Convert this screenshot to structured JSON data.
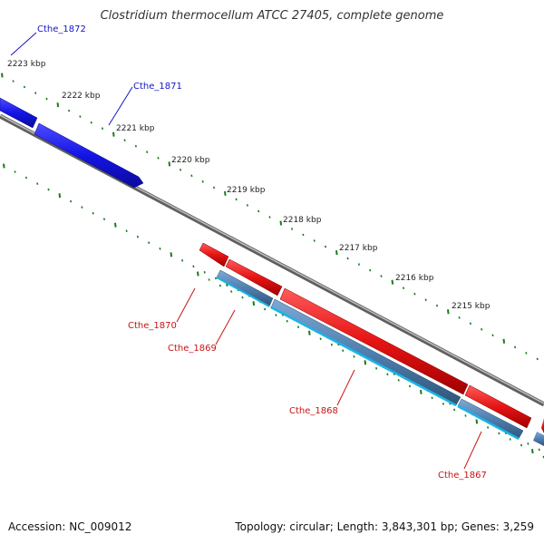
{
  "title": "Clostridium thermocellum ATCC 27405, complete genome",
  "footer": {
    "accession": "Accession: NC_009012",
    "topology": "Topology: circular; Length: 3,843,301 bp; Genes: 3,259"
  },
  "colors": {
    "backbone": "#808080",
    "tick": "#1a7a1a",
    "forward_gene": "#1414e6",
    "reverse_gene": "#e61414",
    "reverse_cds": "#4f7fb0",
    "reverse_cds_light": "#1ab4e6",
    "label_forward": "#1414c8",
    "label_reverse": "#c81414"
  },
  "scale_labels": [
    "2223 kbp",
    "2222 kbp",
    "2221 kbp",
    "2220 kbp",
    "2219 kbp",
    "2218 kbp",
    "2217 kbp",
    "2216 kbp",
    "2215 kbp"
  ],
  "genes": [
    {
      "name": "Cthe_1872",
      "strand": "forward"
    },
    {
      "name": "Cthe_1871",
      "strand": "forward"
    },
    {
      "name": "Cthe_1870",
      "strand": "reverse"
    },
    {
      "name": "Cthe_1869",
      "strand": "reverse"
    },
    {
      "name": "Cthe_1868",
      "strand": "reverse"
    },
    {
      "name": "Cthe_1867",
      "strand": "reverse"
    }
  ]
}
